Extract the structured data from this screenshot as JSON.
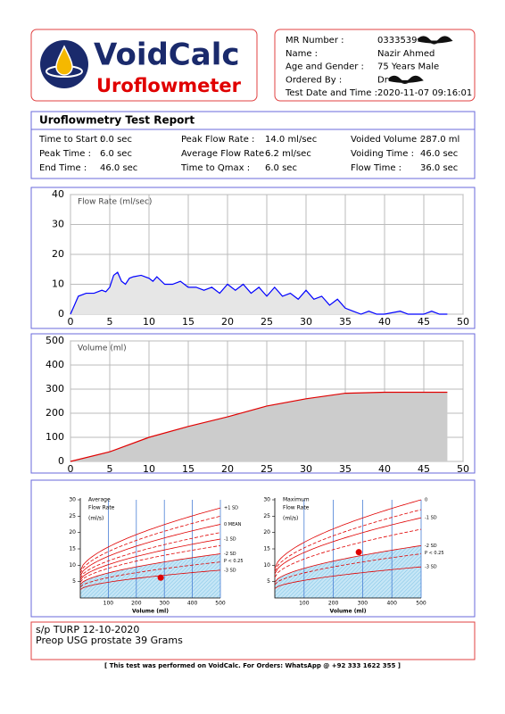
{
  "header": {
    "brand": "VoidCalc",
    "product": "Uroflowmeter",
    "patient": [
      [
        "MR Number :",
        "0333539"
      ],
      [
        "Name       :",
        "Nazir Ahmed"
      ],
      [
        "Age and Gender :",
        "75 Years Male"
      ],
      [
        "Ordered By :",
        "Dr"
      ],
      [
        "Test Date and Time :",
        "2020-11-07 09:16:01"
      ]
    ]
  },
  "report": {
    "title": "Uroflowmetry Test Report",
    "stats": [
      [
        "Time to Start :",
        "0.0 sec"
      ],
      [
        "Peak Flow Rate :",
        "14.0 ml/sec"
      ],
      [
        "Voided Volume :",
        "287.0 ml"
      ],
      [
        "Peak Time :",
        "6.0 sec"
      ],
      [
        "Average Flow Rate :",
        "6.2 ml/sec"
      ],
      [
        "Voiding Time :",
        "46.0 sec"
      ],
      [
        "End Time :",
        "46.0 sec"
      ],
      [
        "Time to Qmax :",
        "6.0 sec"
      ],
      [
        "Flow Time :",
        "36.0 sec"
      ]
    ]
  },
  "chart_data": [
    {
      "type": "area",
      "label": "Flow Rate (ml/sec)",
      "color": "#0000ff",
      "fill": "#e6e6e6",
      "x": [
        0,
        0.5,
        1,
        2,
        3,
        4,
        4.5,
        5,
        5.5,
        6,
        6.5,
        7,
        7.5,
        8,
        9,
        10,
        10.5,
        11,
        12,
        13,
        14,
        15,
        16,
        17,
        18,
        19,
        20,
        21,
        22,
        23,
        24,
        25,
        26,
        27,
        28,
        29,
        30,
        31,
        32,
        33,
        34,
        35,
        36,
        37,
        38,
        39,
        40,
        42,
        43,
        45,
        46,
        47,
        48
      ],
      "values": [
        0,
        3,
        6,
        7,
        7,
        8,
        7.5,
        9,
        13,
        14,
        11,
        10,
        12,
        12.5,
        13,
        12,
        11,
        12.5,
        10,
        10,
        11,
        9,
        9,
        8,
        9,
        7,
        10,
        8,
        10,
        7,
        9,
        6,
        9,
        6,
        7,
        5,
        8,
        5,
        6,
        3,
        5,
        2,
        1,
        0,
        1,
        0,
        0,
        1,
        0,
        0,
        1,
        0,
        0
      ],
      "xlim": [
        0,
        50
      ],
      "xticks": [
        0,
        5,
        10,
        15,
        20,
        25,
        30,
        35,
        40,
        45,
        50
      ],
      "ylim": [
        0,
        40
      ],
      "yticks": [
        0,
        10,
        20,
        30,
        40
      ],
      "grid": true
    },
    {
      "type": "area",
      "label": "Volume (ml)",
      "color": "#e00000",
      "fill": "#cccccc",
      "x": [
        0,
        5,
        10,
        15,
        20,
        25,
        30,
        35,
        40,
        45,
        48
      ],
      "values": [
        0,
        40,
        100,
        145,
        185,
        230,
        260,
        283,
        287,
        287,
        287
      ],
      "xlim": [
        0,
        50
      ],
      "xticks": [
        0,
        5,
        10,
        15,
        20,
        25,
        30,
        35,
        40,
        45,
        50
      ],
      "ylim": [
        0,
        500
      ],
      "yticks": [
        0,
        100,
        200,
        300,
        400,
        500
      ],
      "grid": true
    },
    {
      "type": "nomogram",
      "title_lines": [
        "Average",
        "Flow Rate",
        "(ml/s)"
      ],
      "xlabel": "Volume (ml)",
      "x": [
        287
      ],
      "values": [
        6.2
      ],
      "xlim": [
        0,
        500
      ],
      "xticks": [
        100,
        200,
        300,
        400,
        500
      ],
      "ylim": [
        0,
        30
      ],
      "yticks": [
        5,
        10,
        15,
        20,
        25,
        30
      ],
      "curves": [
        {
          "end": 27.5,
          "label": "+1 SD"
        },
        {
          "end": 25
        },
        {
          "end": 22.5,
          "label": "0 MEAN"
        },
        {
          "end": 20
        },
        {
          "end": 18,
          "label": "-1 SD"
        },
        {
          "end": 16
        },
        {
          "end": 13.5,
          "label": "-2 SD"
        },
        {
          "end": 11
        },
        {
          "end": 8.5,
          "label": "-3 SD"
        }
      ],
      "annotation": "P < 0.25"
    },
    {
      "type": "nomogram",
      "title_lines": [
        "Maximum",
        "Flow Rate",
        "(ml/s)"
      ],
      "xlabel": "Volume (ml)",
      "x": [
        287
      ],
      "values": [
        14
      ],
      "xlim": [
        0,
        500
      ],
      "xticks": [
        100,
        200,
        300,
        400,
        500
      ],
      "ylim": [
        0,
        30
      ],
      "yticks": [
        5,
        10,
        15,
        20,
        25,
        30
      ],
      "curves": [
        {
          "end": 30,
          "label": "0"
        },
        {
          "end": 27
        },
        {
          "end": 24.5,
          "label": "-1 SD"
        },
        {
          "end": 21
        },
        {
          "end": 16,
          "label": "-2 SD"
        },
        {
          "end": 13.5
        },
        {
          "end": 9.5,
          "label": "-3 SD"
        }
      ],
      "annotation": "P < 0.25"
    }
  ],
  "notes": [
    "s/p  TURP 12-10-2020",
    "Preop USG prostate 39 Grams"
  ],
  "footer": "[ This test was performed on VoidCalc. For Orders: WhatsApp @ +92 333 1622 355 ]"
}
